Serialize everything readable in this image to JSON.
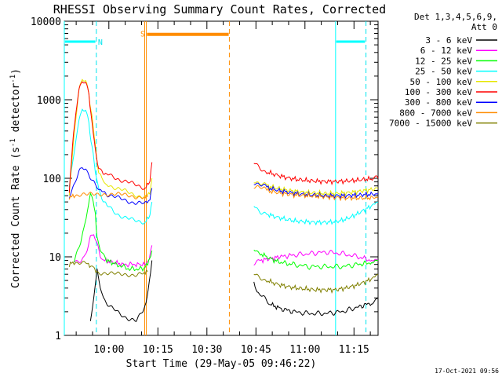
{
  "chart_data": {
    "type": "line",
    "title": "RHESSI Observing Summary Count Rates, Corrected",
    "xlabel": "Start Time (29-May-05 09:46:22)",
    "ylabel": "Corrected Count Rate (s",
    "ylabel_sup": "-1",
    "ylabel_tail": " detector",
    "ylabel_sup2": "-1",
    "ylabel_end": ")",
    "x_range_minutes": [
      0,
      96
    ],
    "x_start": "09:46:22",
    "y_scale": "log",
    "ylim": [
      1,
      10000
    ],
    "y_ticks": [
      {
        "value": 1,
        "label": "1"
      },
      {
        "value": 10,
        "label": "10"
      },
      {
        "value": 100,
        "label": "100"
      },
      {
        "value": 1000,
        "label": "1000"
      },
      {
        "value": 10000,
        "label": "10000"
      }
    ],
    "x_ticks": [
      {
        "time": "10:00",
        "minute": 13.63
      },
      {
        "time": "10:15",
        "minute": 28.63
      },
      {
        "time": "10:30",
        "minute": 43.63
      },
      {
        "time": "10:45",
        "minute": 58.63
      },
      {
        "time": "11:00",
        "minute": 73.63
      },
      {
        "time": "11:15",
        "minute": 88.63
      }
    ],
    "grid": false,
    "legend_position": "right",
    "legend_header": "Det 1,3,4,5,6,9,",
    "legend_header2": "Att 0",
    "timestamp": "17-Oct-2021 09:56",
    "flags": [
      {
        "label": "N",
        "color": "#00e5ee",
        "minute": 11.0,
        "y": 5500
      },
      {
        "label": "S",
        "color": "#ff8c00",
        "minute": 24.0,
        "y": 7000
      }
    ],
    "series": [
      {
        "name": "3 - 6 keV",
        "color": "#000000",
        "pts": [
          [
            8,
            1.5
          ],
          [
            9,
            3
          ],
          [
            10,
            7
          ],
          [
            11,
            4
          ],
          [
            12,
            3
          ],
          [
            14,
            2.3
          ],
          [
            16,
            2
          ],
          [
            18,
            1.8
          ],
          [
            20,
            1.6
          ],
          [
            22,
            1.5
          ],
          [
            24,
            2
          ],
          [
            25,
            2.5
          ],
          [
            26,
            5
          ],
          [
            26.8,
            9
          ]
        ],
        "pts2": [
          [
            58,
            5
          ],
          [
            59,
            3.5
          ],
          [
            61,
            3
          ],
          [
            63,
            2.5
          ],
          [
            66,
            2.2
          ],
          [
            70,
            2
          ],
          [
            75,
            1.9
          ],
          [
            80,
            1.9
          ],
          [
            85,
            2
          ],
          [
            90,
            2.3
          ],
          [
            94,
            2.6
          ],
          [
            96,
            3
          ]
        ]
      },
      {
        "name": "6 - 12 keV",
        "color": "#ff00ff",
        "pts": [
          [
            3,
            9
          ],
          [
            5,
            9
          ],
          [
            6,
            10
          ],
          [
            7,
            13
          ],
          [
            8,
            18
          ],
          [
            9,
            20
          ],
          [
            10,
            15
          ],
          [
            11,
            10
          ],
          [
            12,
            9
          ],
          [
            15,
            8.5
          ],
          [
            18,
            8
          ],
          [
            22,
            8
          ],
          [
            25,
            8
          ],
          [
            26,
            10
          ],
          [
            26.8,
            14
          ]
        ],
        "pts2": [
          [
            58,
            8
          ],
          [
            60,
            9
          ],
          [
            63,
            9.5
          ],
          [
            66,
            10
          ],
          [
            70,
            10.5
          ],
          [
            75,
            11
          ],
          [
            80,
            11.5
          ],
          [
            85,
            11
          ],
          [
            90,
            10
          ],
          [
            94,
            9
          ],
          [
            96,
            9
          ]
        ]
      },
      {
        "name": "12 - 25 keV",
        "color": "#00ff00",
        "pts": [
          [
            3,
            9
          ],
          [
            4,
            12
          ],
          [
            5,
            15
          ],
          [
            6,
            22
          ],
          [
            7,
            40
          ],
          [
            8,
            60
          ],
          [
            8.8,
            55
          ],
          [
            9.5,
            35
          ],
          [
            10,
            18
          ],
          [
            11,
            12
          ],
          [
            13,
            9
          ],
          [
            16,
            8
          ],
          [
            20,
            7
          ],
          [
            24,
            7
          ],
          [
            25.5,
            8
          ],
          [
            26.8,
            12
          ]
        ],
        "pts2": [
          [
            58,
            13
          ],
          [
            60,
            11
          ],
          [
            63,
            9.5
          ],
          [
            66,
            8.5
          ],
          [
            70,
            8
          ],
          [
            75,
            7.5
          ],
          [
            80,
            7.5
          ],
          [
            85,
            7.5
          ],
          [
            90,
            8
          ],
          [
            94,
            8.5
          ],
          [
            96,
            9
          ]
        ]
      },
      {
        "name": "25 - 50 keV",
        "color": "#00ffff",
        "pts": [
          [
            1.5,
            80
          ],
          [
            2.5,
            150
          ],
          [
            3.5,
            300
          ],
          [
            4.5,
            550
          ],
          [
            5.5,
            800
          ],
          [
            6.5,
            750
          ],
          [
            7.5,
            500
          ],
          [
            8.5,
            250
          ],
          [
            9.5,
            120
          ],
          [
            10.5,
            75
          ],
          [
            11.5,
            55
          ],
          [
            13,
            45
          ],
          [
            15,
            38
          ],
          [
            17,
            34
          ],
          [
            19,
            31
          ],
          [
            21,
            29
          ],
          [
            23,
            28
          ],
          [
            25,
            28
          ],
          [
            26.2,
            35
          ],
          [
            26.8,
            50
          ]
        ],
        "pts2": [
          [
            58,
            45
          ],
          [
            60,
            38
          ],
          [
            62,
            35
          ],
          [
            65,
            32
          ],
          [
            68,
            30
          ],
          [
            71,
            28.5
          ],
          [
            74,
            28
          ],
          [
            77,
            27.5
          ],
          [
            80,
            27.5
          ],
          [
            83,
            28
          ],
          [
            86,
            30
          ],
          [
            89,
            34
          ],
          [
            92,
            40
          ],
          [
            95,
            47
          ],
          [
            96,
            50
          ]
        ]
      },
      {
        "name": "50 - 100 keV",
        "color": "#e6e600",
        "pts": [
          [
            1.5,
            65
          ],
          [
            2.5,
            200
          ],
          [
            3.5,
            600
          ],
          [
            4.5,
            1300
          ],
          [
            5.5,
            1900
          ],
          [
            6.5,
            1700
          ],
          [
            7.5,
            1200
          ],
          [
            8.5,
            600
          ],
          [
            9.5,
            250
          ],
          [
            10.5,
            120
          ],
          [
            11.5,
            95
          ],
          [
            13,
            85
          ],
          [
            15,
            78
          ],
          [
            17,
            72
          ],
          [
            19,
            67
          ],
          [
            21,
            63
          ],
          [
            23,
            60
          ],
          [
            25,
            58
          ],
          [
            26.2,
            68
          ],
          [
            26.8,
            100
          ]
        ],
        "pts2": [
          [
            58,
            95
          ],
          [
            60,
            85
          ],
          [
            62,
            80
          ],
          [
            65,
            75
          ],
          [
            68,
            71
          ],
          [
            71,
            68
          ],
          [
            74,
            66
          ],
          [
            77,
            65
          ],
          [
            80,
            64
          ],
          [
            83,
            64
          ],
          [
            86,
            65
          ],
          [
            89,
            67
          ],
          [
            92,
            70
          ],
          [
            95,
            73
          ],
          [
            96,
            75
          ]
        ]
      },
      {
        "name": "100 - 300 keV",
        "color": "#ff0000",
        "pts": [
          [
            1.5,
            70
          ],
          [
            2.5,
            250
          ],
          [
            3.5,
            700
          ],
          [
            4.5,
            1300
          ],
          [
            5.5,
            1750
          ],
          [
            6.5,
            1600
          ],
          [
            7.5,
            1200
          ],
          [
            8.5,
            500
          ],
          [
            9.5,
            220
          ],
          [
            10.5,
            140
          ],
          [
            11.5,
            120
          ],
          [
            13,
            112
          ],
          [
            15,
            105
          ],
          [
            17,
            97
          ],
          [
            19,
            90
          ],
          [
            21,
            84
          ],
          [
            23,
            79
          ],
          [
            25,
            76
          ],
          [
            26.2,
            95
          ],
          [
            26.8,
            160
          ]
        ],
        "pts2": [
          [
            58,
            155
          ],
          [
            60,
            135
          ],
          [
            62,
            120
          ],
          [
            65,
            110
          ],
          [
            68,
            102
          ],
          [
            71,
            97
          ],
          [
            74,
            94
          ],
          [
            77,
            92
          ],
          [
            80,
            91
          ],
          [
            83,
            91
          ],
          [
            86,
            92
          ],
          [
            89,
            94
          ],
          [
            92,
            97
          ],
          [
            95,
            99
          ],
          [
            96,
            100
          ]
        ]
      },
      {
        "name": "300 - 800 keV",
        "color": "#0000ff",
        "pts": [
          [
            1.5,
            60
          ],
          [
            2.5,
            75
          ],
          [
            3.5,
            95
          ],
          [
            4.5,
            120
          ],
          [
            5.5,
            135
          ],
          [
            6.5,
            130
          ],
          [
            7.5,
            115
          ],
          [
            8.5,
            95
          ],
          [
            9.5,
            80
          ],
          [
            10.5,
            72
          ],
          [
            11.5,
            68
          ],
          [
            13,
            63
          ],
          [
            15,
            58
          ],
          [
            17,
            55
          ],
          [
            19,
            52
          ],
          [
            21,
            50
          ],
          [
            23,
            49
          ],
          [
            25,
            47
          ],
          [
            26.2,
            55
          ],
          [
            26.8,
            75
          ]
        ],
        "pts2": [
          [
            58,
            90
          ],
          [
            60,
            82
          ],
          [
            62,
            76
          ],
          [
            65,
            71
          ],
          [
            68,
            67
          ],
          [
            71,
            64
          ],
          [
            74,
            62
          ],
          [
            77,
            61
          ],
          [
            80,
            60
          ],
          [
            83,
            60
          ],
          [
            86,
            60
          ],
          [
            89,
            61
          ],
          [
            92,
            62
          ],
          [
            95,
            63
          ],
          [
            96,
            64
          ]
        ]
      },
      {
        "name": "800 - 7000 keV",
        "color": "#ff8c00",
        "pts": [
          [
            1.5,
            58
          ],
          [
            3,
            59
          ],
          [
            5,
            60
          ],
          [
            7,
            61
          ],
          [
            8,
            62
          ],
          [
            10,
            63
          ],
          [
            12,
            64
          ],
          [
            14,
            63
          ],
          [
            16,
            62
          ],
          [
            18,
            61
          ],
          [
            20,
            60
          ],
          [
            22,
            59
          ],
          [
            24,
            58
          ],
          [
            25.5,
            58
          ]
        ],
        "pts2": [
          [
            58,
            80
          ],
          [
            60,
            75
          ],
          [
            62,
            70
          ],
          [
            65,
            66
          ],
          [
            68,
            63
          ],
          [
            71,
            61
          ],
          [
            74,
            60
          ],
          [
            77,
            59
          ],
          [
            80,
            58
          ],
          [
            83,
            57
          ],
          [
            86,
            56
          ],
          [
            89,
            56
          ],
          [
            92,
            56
          ],
          [
            95,
            57
          ],
          [
            96,
            58
          ]
        ]
      },
      {
        "name": "7000 - 15000 keV",
        "color": "#808000",
        "pts": [
          [
            1.5,
            8
          ],
          [
            3,
            8.5
          ],
          [
            5,
            8.5
          ],
          [
            7,
            8.2
          ],
          [
            8.5,
            7.5
          ],
          [
            10,
            6.5
          ],
          [
            12,
            6.2
          ],
          [
            14,
            6
          ],
          [
            16,
            6
          ],
          [
            18,
            6
          ],
          [
            20,
            6
          ],
          [
            22,
            6
          ],
          [
            24,
            6.2
          ],
          [
            25.5,
            6.5
          ]
        ],
        "pts2": [
          [
            58,
            6
          ],
          [
            60,
            5.5
          ],
          [
            62,
            5
          ],
          [
            65,
            4.5
          ],
          [
            68,
            4.2
          ],
          [
            71,
            4
          ],
          [
            74,
            3.9
          ],
          [
            77,
            3.8
          ],
          [
            80,
            3.8
          ],
          [
            83,
            3.8
          ],
          [
            86,
            4
          ],
          [
            89,
            4.3
          ],
          [
            92,
            4.8
          ],
          [
            95,
            5.5
          ],
          [
            96,
            6
          ]
        ]
      }
    ]
  }
}
